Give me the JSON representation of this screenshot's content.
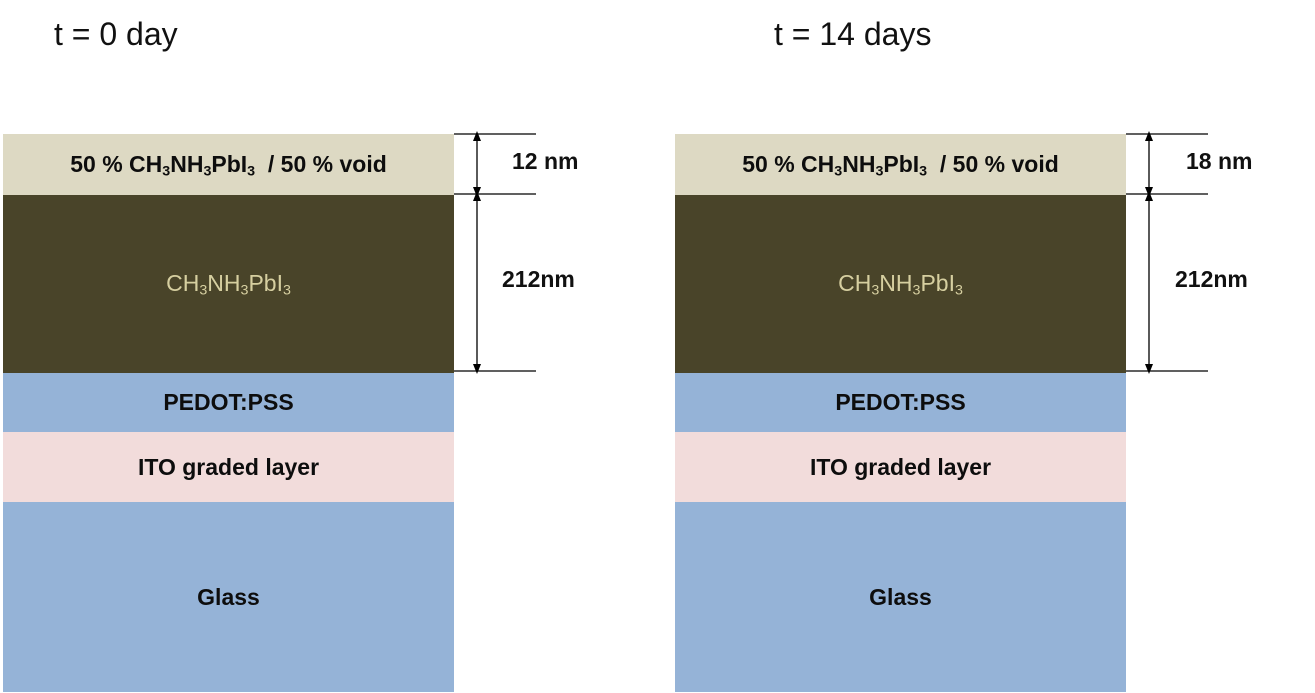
{
  "panels": [
    {
      "title": "t = 0 day",
      "layers": {
        "void": {
          "prefix": "50 % ",
          "formula": [
            "CH",
            "3",
            "NH",
            "3",
            "PbI",
            "3"
          ],
          "suffix": "  / 50 % void"
        },
        "perovskite": {
          "formula": [
            "CH",
            "3",
            "NH",
            "3",
            "PbI",
            "3"
          ]
        },
        "pedot": "PEDOT:PSS",
        "ito": "ITO graded layer",
        "glass": "Glass"
      },
      "dimensions": {
        "void_thickness": "12 nm",
        "perovskite_thickness": "212nm"
      }
    },
    {
      "title": "t = 14 days",
      "layers": {
        "void": {
          "prefix": "50 % ",
          "formula": [
            "CH",
            "3",
            "NH",
            "3",
            "PbI",
            "3"
          ],
          "suffix": "  / 50 % void"
        },
        "perovskite": {
          "formula": [
            "CH",
            "3",
            "NH",
            "3",
            "PbI",
            "3"
          ]
        },
        "pedot": "PEDOT:PSS",
        "ito": "ITO graded layer",
        "glass": "Glass"
      },
      "dimensions": {
        "void_thickness": "18 nm",
        "perovskite_thickness": "212nm"
      }
    }
  ],
  "colors": {
    "void_layer": "#ddd9c3",
    "perovskite_layer": "#494429",
    "perovskite_text": "#d6cfa0",
    "pedot_layer": "#95b3d7",
    "ito_layer": "#f2dcdb",
    "glass_layer": "#95b3d7"
  }
}
